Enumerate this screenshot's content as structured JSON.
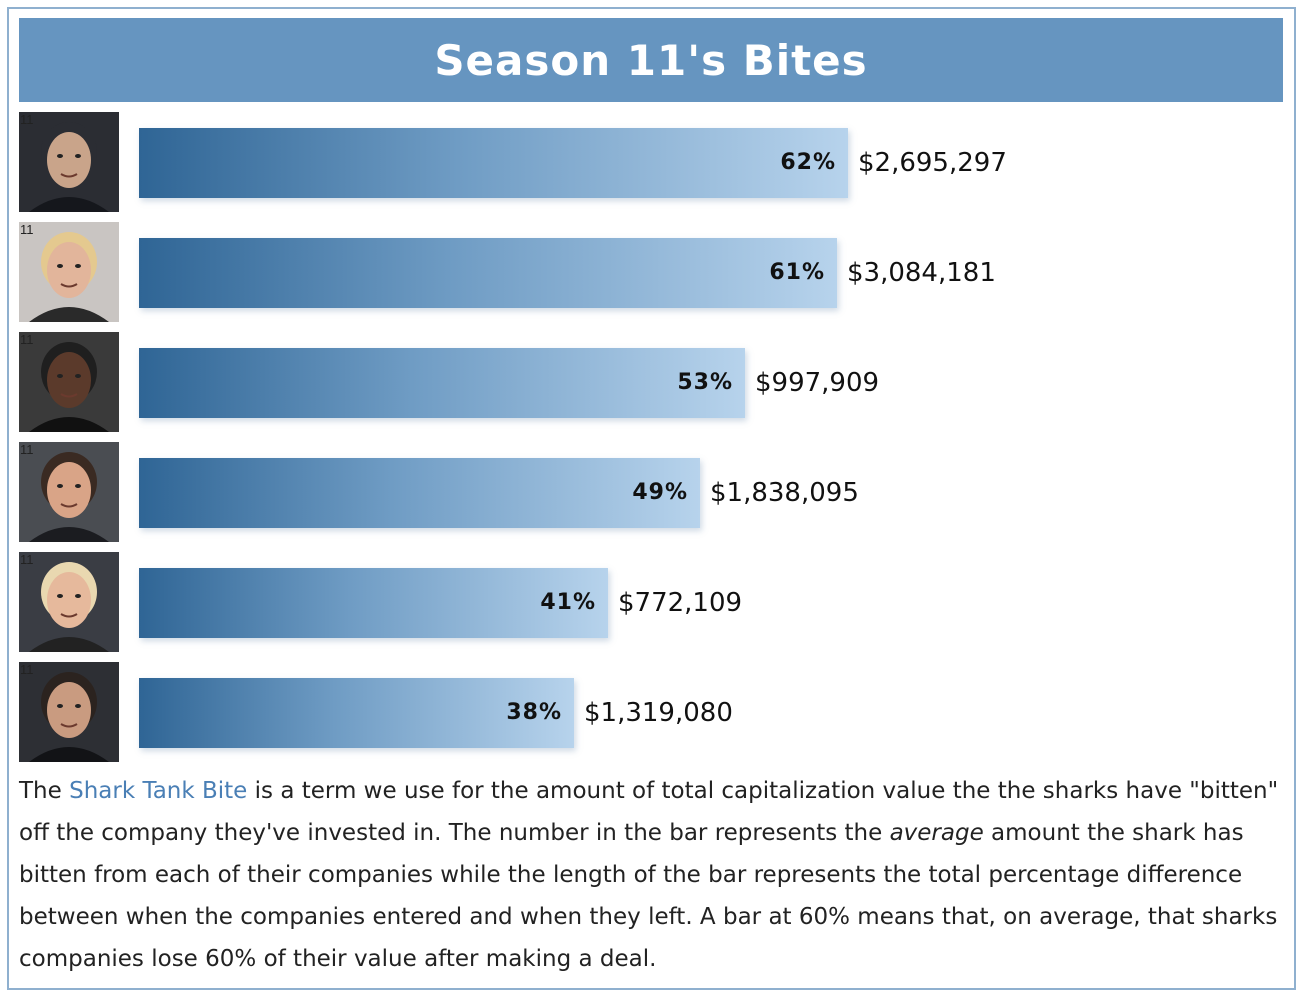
{
  "header": {
    "title": "Season 11's Bites"
  },
  "chart_data": {
    "type": "bar",
    "orientation": "horizontal",
    "title": "Season 11's Bites",
    "xlim": [
      0,
      100
    ],
    "grid": false,
    "bars": [
      {
        "avatar_tag": "11",
        "avatar_icon": "shark-portrait-bald-man-icon",
        "percent_label": "62%",
        "percent": 62,
        "amount": "$2,695,297"
      },
      {
        "avatar_tag": "11",
        "avatar_icon": "shark-portrait-blonde-woman-icon",
        "percent_label": "61%",
        "percent": 61,
        "amount": "$3,084,181"
      },
      {
        "avatar_tag": "11",
        "avatar_icon": "shark-portrait-man-dark-suit-icon",
        "percent_label": "53%",
        "percent": 53,
        "amount": "$997,909"
      },
      {
        "avatar_tag": "11",
        "avatar_icon": "shark-portrait-dark-haired-man-icon",
        "percent_label": "49%",
        "percent": 49,
        "amount": "$1,838,095"
      },
      {
        "avatar_tag": "11",
        "avatar_icon": "shark-portrait-short-haired-woman-icon",
        "percent_label": "41%",
        "percent": 41,
        "amount": "$772,109"
      },
      {
        "avatar_tag": "11",
        "avatar_icon": "shark-portrait-man-stubble-icon",
        "percent_label": "38%",
        "percent": 38,
        "amount": "$1,319,080"
      }
    ]
  },
  "caption": {
    "part1": "The ",
    "link": "Shark Tank Bite",
    "part2": " is a term we use for the amount of total capitalization value the the sharks have \"bitten\" off the company they've invested in. The number in the bar represents the ",
    "emphasis": "average",
    "part3": " amount the shark has bitten from each of their companies while the length of the bar represents the total percentage difference between when the companies entered and when they left. A bar at 60% means that, on average, that sharks companies lose 60% of their value after making a deal."
  },
  "colors": {
    "header_bg": "#6695c0",
    "bar_start": "#2f6595",
    "bar_end": "#b7d3ec",
    "link": "#4a7fb5",
    "frame": "#8fb0cf"
  }
}
